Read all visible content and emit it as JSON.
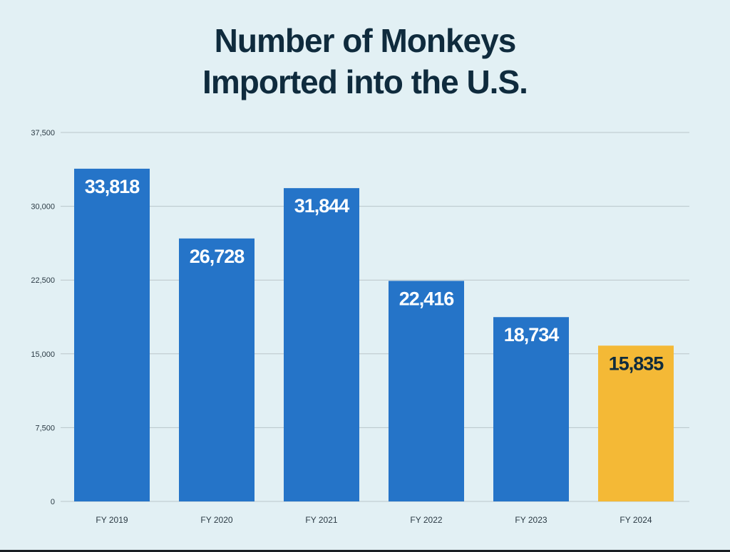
{
  "chart_data": {
    "type": "bar",
    "title_lines": [
      "Number of Monkeys",
      "Imported into the U.S."
    ],
    "categories": [
      "FY 2019",
      "FY 2020",
      "FY 2021",
      "FY 2022",
      "FY 2023",
      "FY 2024"
    ],
    "values": [
      33818,
      26728,
      31844,
      22416,
      18734,
      15835
    ],
    "data_labels": [
      "33,818",
      "26,728",
      "31,844",
      "22,416",
      "18,734",
      "15,835"
    ],
    "xlabel": "",
    "ylabel": "",
    "ylim": [
      0,
      37500
    ],
    "yticks": [
      0,
      7500,
      15000,
      22500,
      30000,
      37500
    ],
    "ytick_labels": [
      "0",
      "7,500",
      "15,000",
      "22,500",
      "30,000",
      "37,500"
    ],
    "grid": true,
    "colors": {
      "bar": "#2574c8",
      "highlight_bar": "#f4b936",
      "label_on_bar": "#ffffff",
      "label_on_highlight": "#0f2b3d",
      "grid": "#b9c6ca",
      "title": "#0f2b3d"
    },
    "highlight_index": 5
  }
}
